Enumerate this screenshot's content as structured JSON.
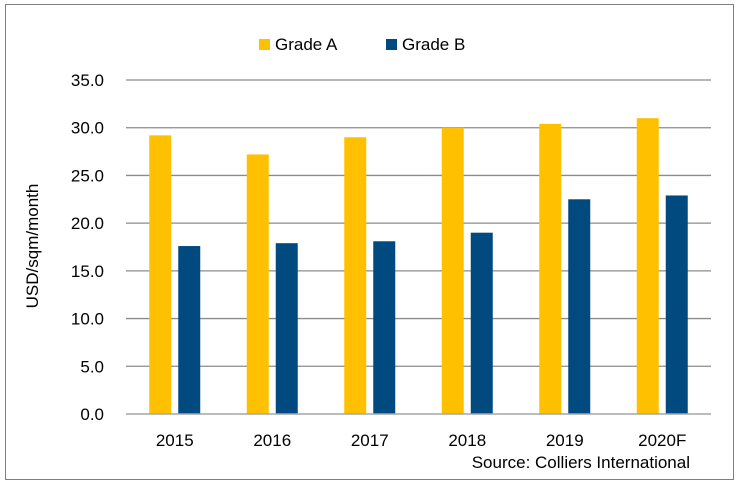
{
  "chart_data": {
    "type": "bar",
    "title": "",
    "xlabel": "",
    "ylabel": "USD/sqm/month",
    "categories": [
      "2015",
      "2016",
      "2017",
      "2018",
      "2019",
      "2020F"
    ],
    "series": [
      {
        "name": "Grade A",
        "color": "#FFC000",
        "values": [
          29.2,
          27.2,
          29.0,
          30.0,
          30.4,
          31.0
        ]
      },
      {
        "name": "Grade B",
        "color": "#004A80",
        "values": [
          17.6,
          17.9,
          18.1,
          19.0,
          22.5,
          22.9
        ]
      }
    ],
    "ylim": [
      0,
      35
    ],
    "yticks": [
      "0.0",
      "5.0",
      "10.0",
      "15.0",
      "20.0",
      "25.0",
      "30.0",
      "35.0"
    ],
    "grid": true,
    "legend_position": "top-center",
    "source": "Source: Colliers International"
  }
}
